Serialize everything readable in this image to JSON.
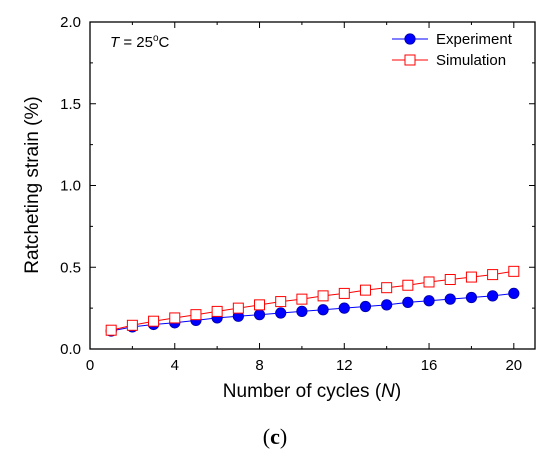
{
  "chart_data": {
    "type": "line",
    "xlabel": "Number of cycles (N)",
    "ylabel": "Ratcheting strain (%)",
    "annotation": "T = 25°C",
    "xlim": [
      0,
      21
    ],
    "ylim": [
      0,
      2.0
    ],
    "xticks": [
      0,
      4,
      8,
      12,
      16,
      20
    ],
    "yticks": [
      0.0,
      0.5,
      1.0,
      1.5,
      2.0
    ],
    "ytick_labels": [
      "0.0",
      "0.5",
      "1.0",
      "1.5",
      "2.0"
    ],
    "legend_position": "top-right",
    "x": [
      1,
      2,
      3,
      4,
      5,
      6,
      7,
      8,
      9,
      10,
      11,
      12,
      13,
      14,
      15,
      16,
      17,
      18,
      19,
      20
    ],
    "series": [
      {
        "name": "Experiment",
        "color": "#0000ff",
        "marker": "filled-circle",
        "values": [
          0.11,
          0.135,
          0.15,
          0.16,
          0.175,
          0.19,
          0.2,
          0.21,
          0.22,
          0.23,
          0.24,
          0.25,
          0.26,
          0.27,
          0.285,
          0.295,
          0.305,
          0.315,
          0.325,
          0.34
        ]
      },
      {
        "name": "Simulation",
        "color": "#ff0000",
        "marker": "open-square",
        "values": [
          0.115,
          0.145,
          0.17,
          0.19,
          0.21,
          0.23,
          0.25,
          0.27,
          0.29,
          0.305,
          0.325,
          0.34,
          0.36,
          0.375,
          0.39,
          0.41,
          0.425,
          0.44,
          0.455,
          0.475
        ]
      }
    ]
  },
  "panel_label": "c"
}
